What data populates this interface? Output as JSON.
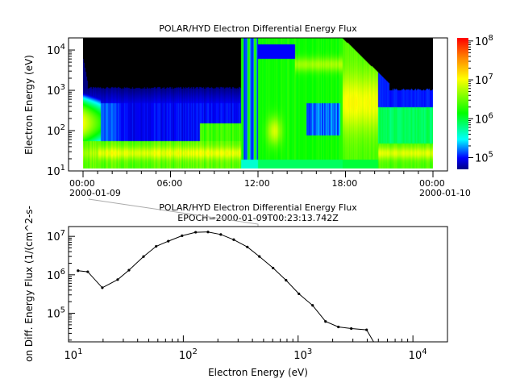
{
  "chart_data": [
    {
      "type": "heatmap",
      "title": "POLAR/HYD  Electron Differential Energy Flux",
      "ylabel": "Electron Energy (eV)",
      "y_scale": "log",
      "ylim": [
        10,
        20000
      ],
      "y_ticks": [
        {
          "base": "10",
          "exp": "1"
        },
        {
          "base": "10",
          "exp": "2"
        },
        {
          "base": "10",
          "exp": "3"
        },
        {
          "base": "10",
          "exp": "4"
        }
      ],
      "x_ticks": [
        {
          "line1": "00:00",
          "line2": "2000-01-09"
        },
        {
          "line1": "06:00",
          "line2": ""
        },
        {
          "line1": "12:00",
          "line2": ""
        },
        {
          "line1": "18:00",
          "line2": ""
        },
        {
          "line1": "00:00",
          "line2": "2000-01-10"
        }
      ],
      "colorbar": {
        "scale": "log",
        "range": [
          50000,
          120000000
        ],
        "ticks": [
          {
            "base": "10",
            "exp": "5"
          },
          {
            "base": "10",
            "exp": "6"
          },
          {
            "base": "10",
            "exp": "7"
          },
          {
            "base": "10",
            "exp": "8"
          }
        ],
        "colormap": [
          "#000080",
          "#0000ff",
          "#00ffff",
          "#00ff00",
          "#ffff00",
          "#ff8000",
          "#ff0000"
        ]
      },
      "no_data_color": "#000000"
    },
    {
      "type": "line",
      "title": "POLAR/HYD  Electron Differential Energy Flux",
      "subtitle": "EPOCH=2000-01-09T00:23:13.742Z",
      "xlabel": "Electron Energy (eV)",
      "ylabel": "on Diff. Energy Flux (1/(cm^2-s-",
      "x_scale": "log",
      "y_scale": "log",
      "xlim": [
        10,
        20000
      ],
      "ylim": [
        18000,
        18000000
      ],
      "x_ticks": [
        {
          "base": "10",
          "exp": "1"
        },
        {
          "base": "10",
          "exp": "2"
        },
        {
          "base": "10",
          "exp": "3"
        },
        {
          "base": "10",
          "exp": "4"
        }
      ],
      "y_ticks": [
        {
          "base": "10",
          "exp": "5"
        },
        {
          "base": "10",
          "exp": "6"
        },
        {
          "base": "10",
          "exp": "7"
        }
      ],
      "line_color": "#000000",
      "x": [
        12.1,
        14.7,
        19.7,
        26.8,
        33.6,
        45,
        58,
        74,
        97.5,
        128,
        164,
        212,
        275,
        361,
        460,
        605,
        785,
        1016,
        1337,
        1733,
        2244,
        2904,
        3950,
        5100
      ],
      "y": [
        1280000,
        1200000,
        460000,
        750000,
        1320000,
        2980000,
        5500000,
        7500000,
        10400000,
        12800000,
        13000000,
        11200000,
        8200000,
        5300000,
        3000000,
        1500000,
        720000,
        320000,
        160000,
        61000,
        44000,
        40000,
        37000,
        10000
      ]
    }
  ]
}
